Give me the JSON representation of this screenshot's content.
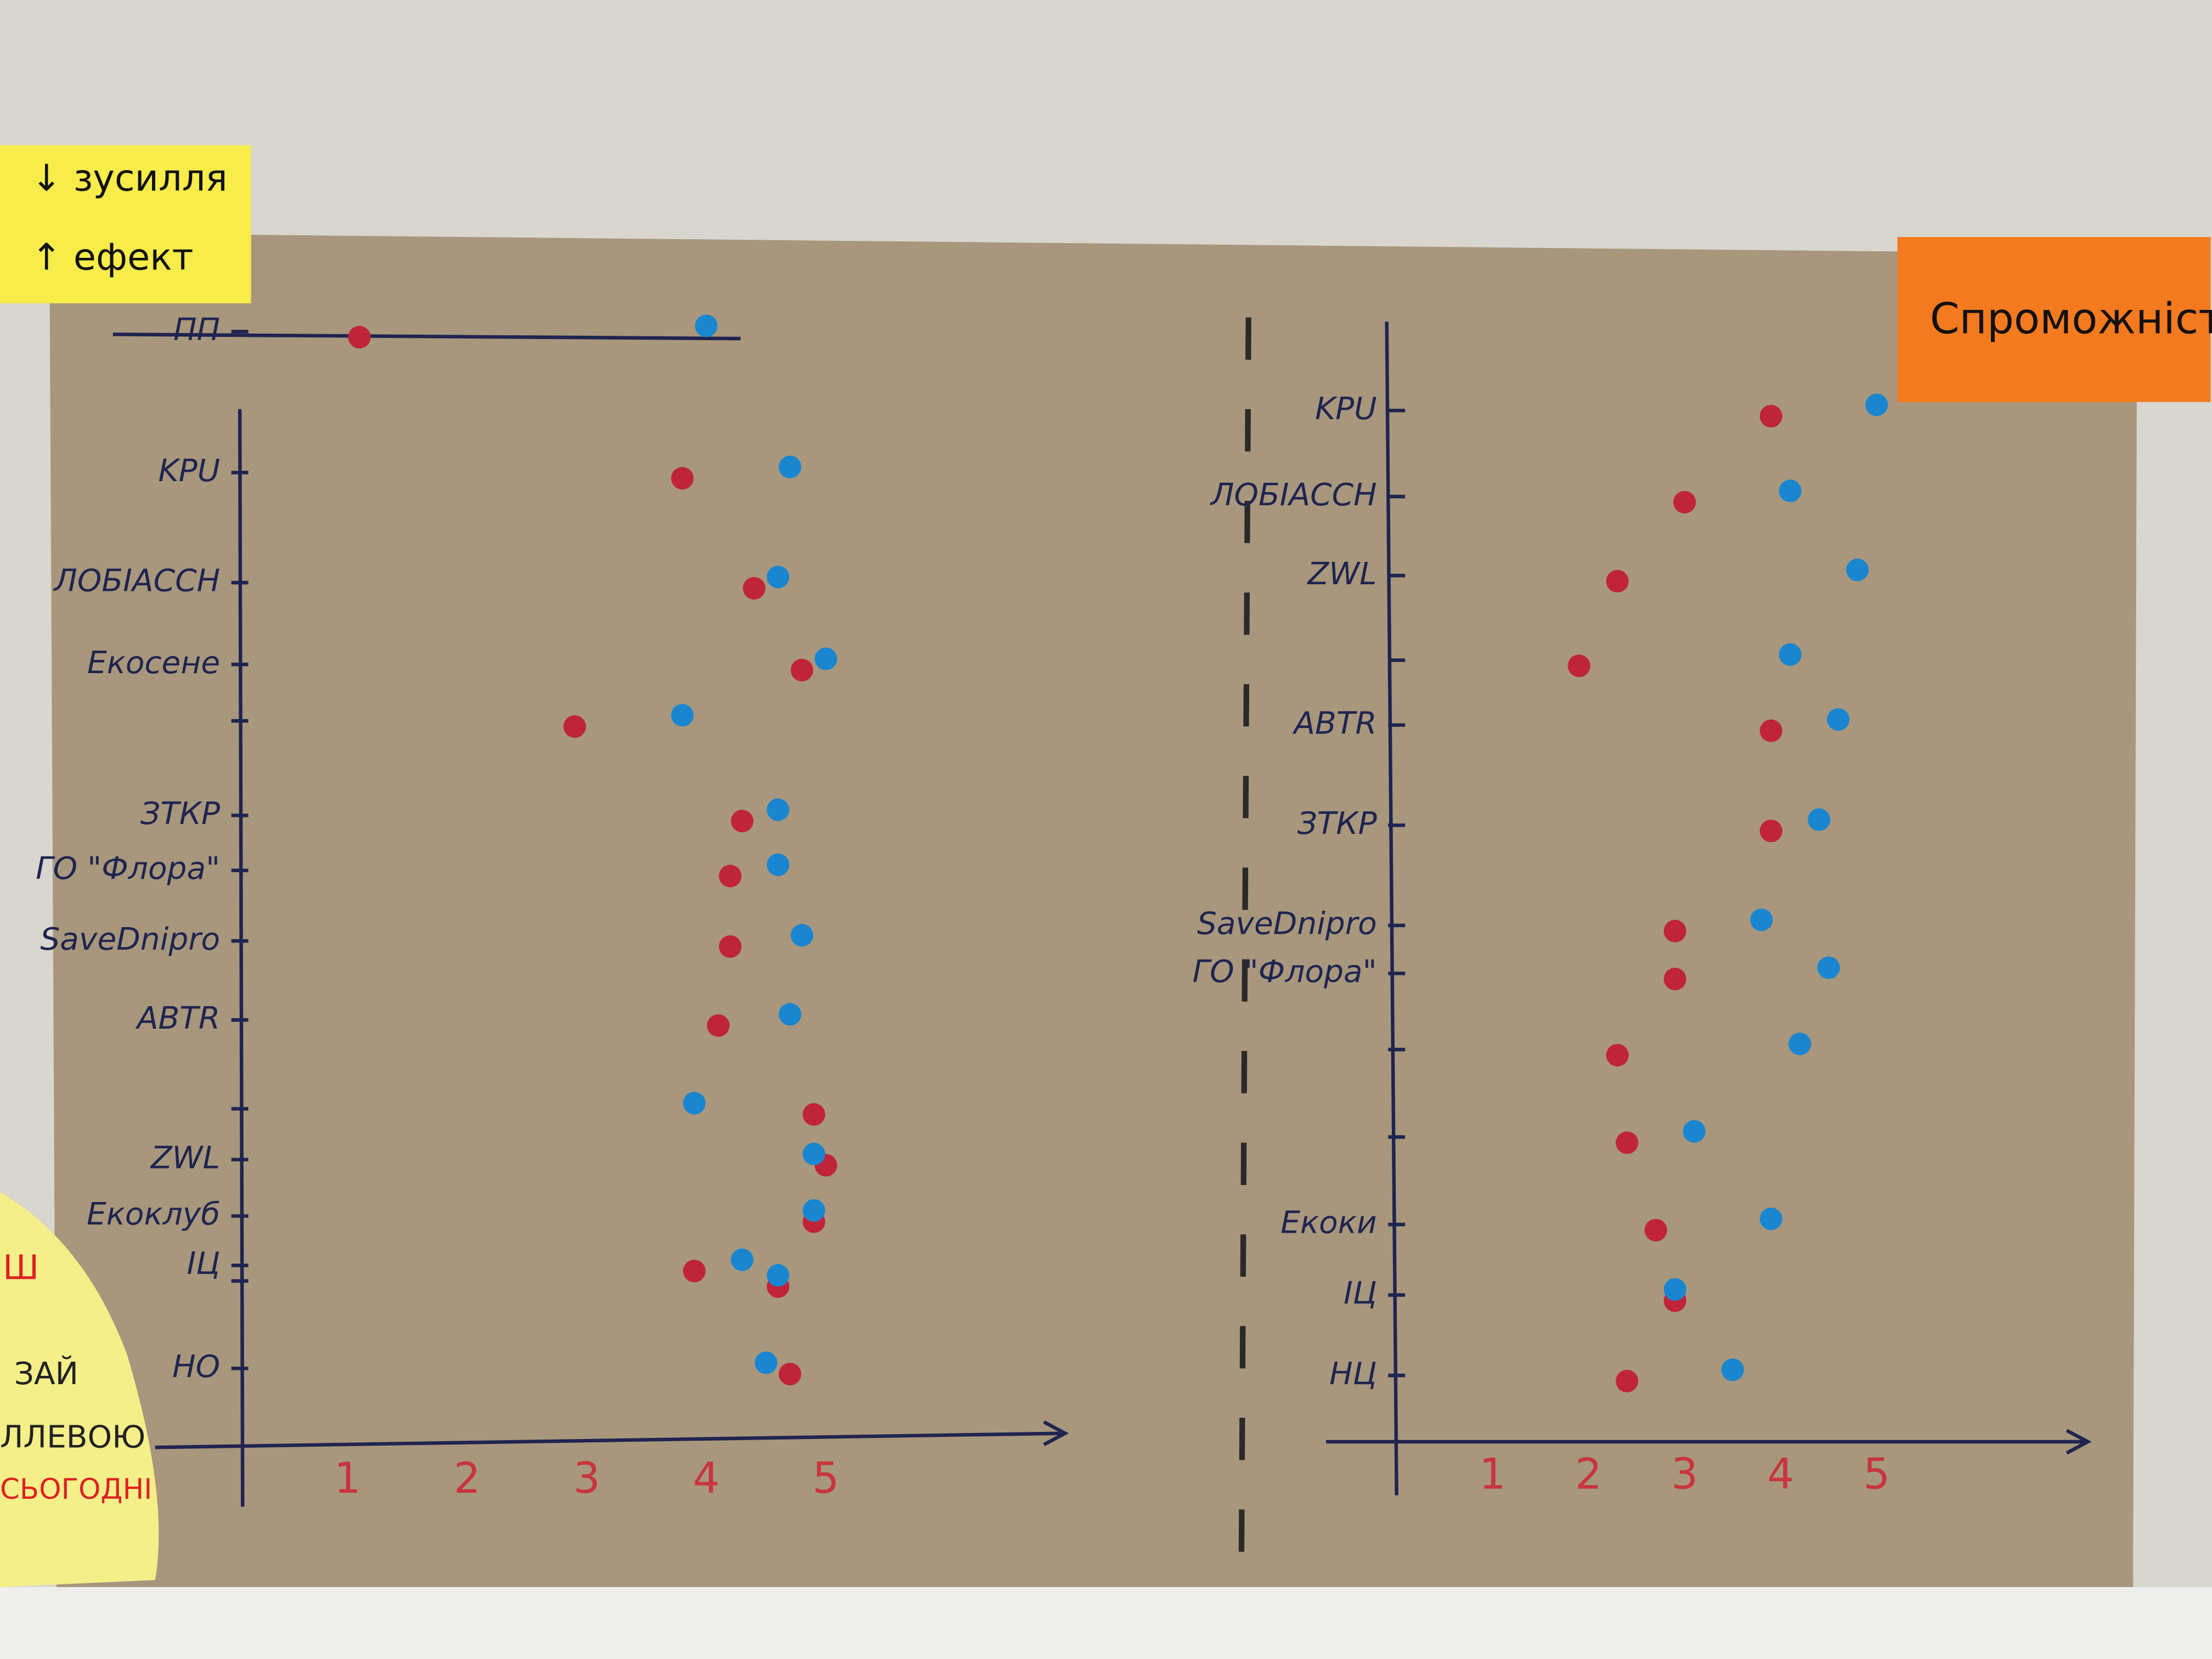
{
  "notes": {
    "top_left": [
      "↓ зусилля",
      "↑ ефект"
    ],
    "top_right": "Спроможність",
    "left": [
      "Ш",
      "ЗАЙ",
      "ЛЛЕВОЮ",
      "СЬОГОДНІ"
    ]
  },
  "chart_data": [
    {
      "type": "dot",
      "categories": [
        "ПП",
        "KPU",
        "ЛОБІАССН",
        "Екосене",
        null,
        "ЗТКР",
        "ГО \"Флора\"",
        "SaveDnipro",
        "ABTR",
        null,
        "ZWL",
        "Екоклуб",
        "ІЦ",
        null,
        "НО"
      ],
      "series": [
        {
          "color": "#c0243a",
          "values": [
            1.1,
            3.8,
            4.4,
            4.8,
            2.9,
            4.3,
            4.2,
            4.2,
            4.1,
            4.9,
            5.0,
            4.9,
            3.9,
            4.6,
            4.7
          ]
        },
        {
          "color": "#1a86d0",
          "values": [
            4.0,
            4.7,
            4.6,
            5.0,
            3.8,
            4.6,
            4.6,
            4.8,
            4.7,
            3.9,
            4.9,
            4.9,
            4.3,
            4.6,
            4.5
          ]
        }
      ],
      "xlim": [
        0.1,
        7
      ],
      "xticks": [
        1,
        2,
        3,
        4,
        5
      ]
    },
    {
      "type": "dot",
      "categories": [
        "KPU",
        "ЛОБІАССН",
        "ZWL",
        null,
        "ABTR",
        "ЗТКР",
        "SaveDnipro",
        "ГО \"Флора\"",
        null,
        null,
        "Екоки",
        "ІЦ",
        "НЦ"
      ],
      "series": [
        {
          "color": "#c0243a",
          "values": [
            3.9,
            3.0,
            2.3,
            1.9,
            3.9,
            3.9,
            2.9,
            2.9,
            2.3,
            2.4,
            2.7,
            2.9,
            2.4
          ]
        },
        {
          "color": "#1a86d0",
          "values": [
            5.0,
            4.1,
            4.8,
            4.1,
            4.6,
            4.4,
            3.8,
            4.5,
            4.2,
            3.1,
            3.9,
            2.9,
            3.5
          ]
        }
      ],
      "xlim": [
        0,
        7.2
      ],
      "xticks": [
        1,
        2,
        3,
        4,
        5
      ]
    }
  ]
}
